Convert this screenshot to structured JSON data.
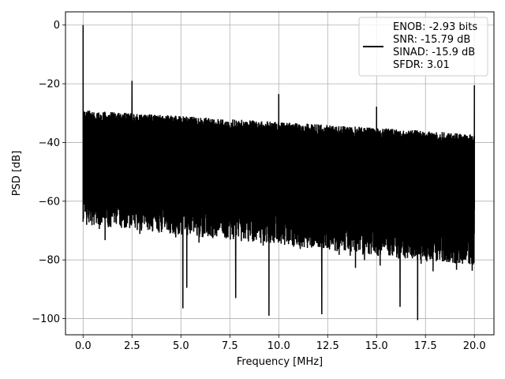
{
  "chart_data": {
    "type": "line",
    "xlabel": "Frequency [MHz]",
    "ylabel": "PSD [dB]",
    "xlim": [
      -0.9,
      21.0
    ],
    "ylim": [
      -105.5,
      4.5
    ],
    "xticks": [
      0.0,
      2.5,
      5.0,
      7.5,
      10.0,
      12.5,
      15.0,
      17.5,
      20.0
    ],
    "xtick_labels": [
      "0.0",
      "2.5",
      "5.0",
      "7.5",
      "10.0",
      "12.5",
      "15.0",
      "17.5",
      "20.0"
    ],
    "yticks": [
      0,
      -20,
      -40,
      -60,
      -80,
      -100
    ],
    "ytick_labels": [
      "0",
      "−20",
      "−40",
      "−60",
      "−80",
      "−100"
    ],
    "grid": true,
    "legend_position": "top-right",
    "series": [
      {
        "name": "ENOB: -2.93 bits\nSNR: -15.79 dB\nSINAD: -15.9 dB\nSFDR: 3.01",
        "color": "#000000",
        "x_range": [
          0.0,
          20.0
        ],
        "noise_ceiling_db": [
          -29,
          -37
        ],
        "noise_floor_db": [
          -68,
          -82
        ],
        "spikes": [
          {
            "x": 0.0,
            "y": 0.0
          },
          {
            "x": 2.5,
            "y": -19.0
          },
          {
            "x": 10.0,
            "y": -23.5
          },
          {
            "x": 15.0,
            "y": -27.8
          },
          {
            "x": 20.0,
            "y": -20.5
          }
        ],
        "dips": [
          {
            "x": 5.1,
            "y": -96.5
          },
          {
            "x": 5.3,
            "y": -89.5
          },
          {
            "x": 7.8,
            "y": -93.0
          },
          {
            "x": 9.5,
            "y": -99.0
          },
          {
            "x": 12.2,
            "y": -98.5
          },
          {
            "x": 16.2,
            "y": -96.0
          },
          {
            "x": 17.1,
            "y": -100.5
          }
        ]
      }
    ]
  }
}
